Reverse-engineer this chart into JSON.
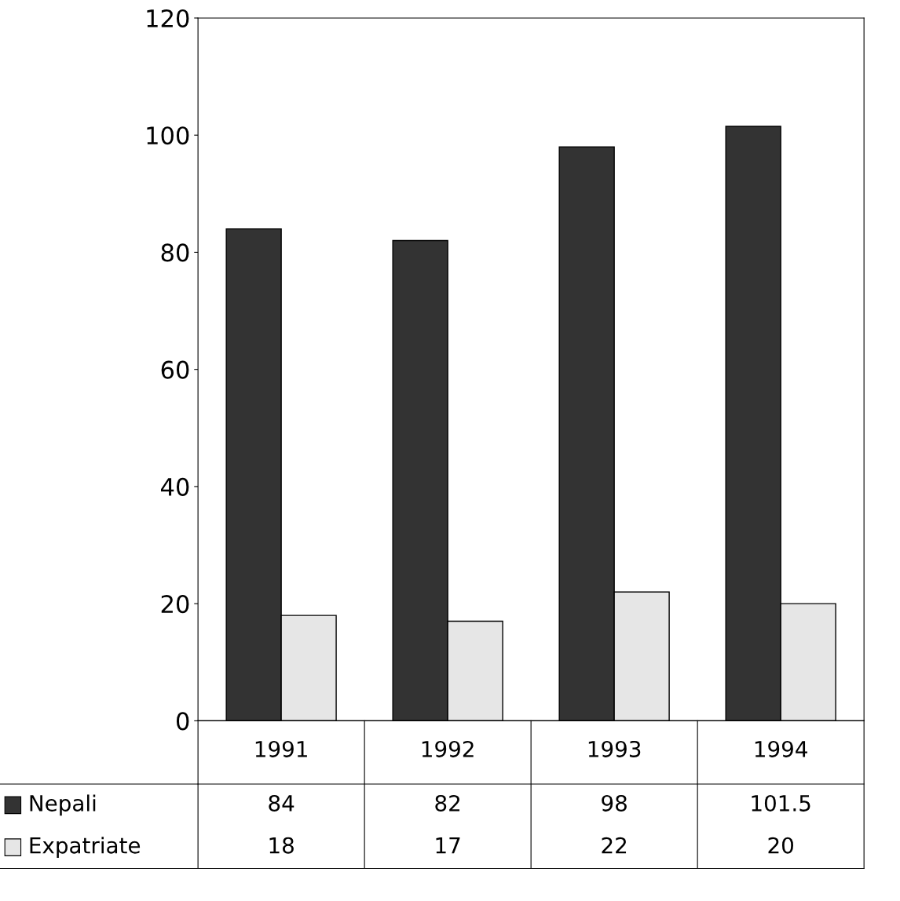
{
  "chart_data": {
    "type": "bar",
    "categories": [
      "1991",
      "1992",
      "1993",
      "1994"
    ],
    "series": [
      {
        "name": "Nepali",
        "color": "#333333",
        "values": [
          84,
          82,
          98,
          101.5
        ]
      },
      {
        "name": "Expatriate",
        "color": "#e6e6e6",
        "values": [
          18,
          17,
          22,
          20
        ]
      }
    ],
    "ylim": [
      0,
      120
    ],
    "yticks": [
      0,
      20,
      40,
      60,
      80,
      100,
      120
    ],
    "data_labels": true,
    "grid": false,
    "legend": "bottom left"
  }
}
